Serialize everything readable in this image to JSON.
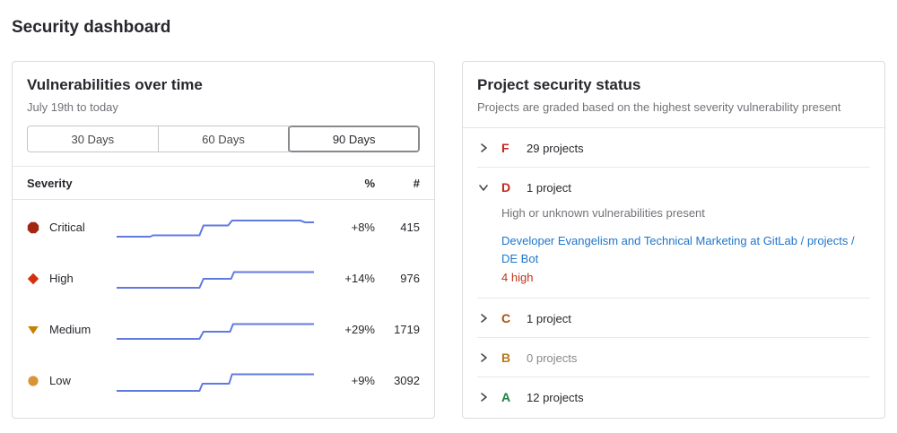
{
  "page": {
    "title": "Security dashboard"
  },
  "vulnerabilities_panel": {
    "title": "Vulnerabilities over time",
    "subtitle": "July 19th to today",
    "range_buttons": [
      {
        "label": "30 Days",
        "selected": false
      },
      {
        "label": "60 Days",
        "selected": false
      },
      {
        "label": "90 Days",
        "selected": true
      }
    ],
    "columns": {
      "severity": "Severity",
      "percent": "%",
      "count": "#"
    },
    "sparkline_color": "#617ae2",
    "rows": [
      {
        "severity": "Critical",
        "icon": "severity-critical",
        "icon_color": "#a12712",
        "percent_change": "+8%",
        "count": "415"
      },
      {
        "severity": "High",
        "icon": "severity-high",
        "icon_color": "#d2300f",
        "percent_change": "+14%",
        "count": "976"
      },
      {
        "severity": "Medium",
        "icon": "severity-medium",
        "icon_color": "#c78100",
        "percent_change": "+29%",
        "count": "1719"
      },
      {
        "severity": "Low",
        "icon": "severity-low",
        "icon_color": "#d99435",
        "percent_change": "+9%",
        "count": "3092"
      }
    ]
  },
  "project_status_panel": {
    "title": "Project security status",
    "subtitle": "Projects are graded based on the highest severity vulnerability present",
    "grades": [
      {
        "grade": "F",
        "color": "#c4261a",
        "count_label": "29 projects",
        "expanded": false
      },
      {
        "grade": "D",
        "color": "#c4261a",
        "count_label": "1 project",
        "expanded": true,
        "description": "High or unknown vulnerabilities present",
        "project": {
          "name": "Developer Evangelism and Technical Marketing at GitLab / projects / DE Bot",
          "vulnerability_summary": "4 high",
          "summary_color": "#c0341d"
        }
      },
      {
        "grade": "C",
        "color": "#ad4e0c",
        "count_label": "1 project",
        "expanded": false
      },
      {
        "grade": "B",
        "color": "#b5791a",
        "count_label": "0 projects",
        "expanded": false,
        "muted": true
      },
      {
        "grade": "A",
        "color": "#1f7d45",
        "count_label": "12 projects",
        "expanded": false
      }
    ]
  },
  "chart_data": [
    {
      "type": "line",
      "name": "Critical 90-day trend",
      "color": "#617ae2",
      "axes": "hidden sparkline",
      "points": [
        [
          0,
          27
        ],
        [
          34,
          27
        ],
        [
          37,
          25.5
        ],
        [
          84,
          25.5
        ],
        [
          88,
          14.5
        ],
        [
          113,
          14.5
        ],
        [
          117,
          9
        ],
        [
          186,
          9
        ],
        [
          191,
          11
        ],
        [
          200,
          11
        ]
      ]
    },
    {
      "type": "line",
      "name": "High 90-day trend",
      "color": "#617ae2",
      "axes": "hidden sparkline",
      "points": [
        [
          0,
          27
        ],
        [
          84,
          27
        ],
        [
          88,
          17
        ],
        [
          116,
          17
        ],
        [
          119,
          9.5
        ],
        [
          200,
          9.5
        ]
      ]
    },
    {
      "type": "line",
      "name": "Medium 90-day trend",
      "color": "#617ae2",
      "axes": "hidden sparkline",
      "points": [
        [
          0,
          27
        ],
        [
          84,
          27
        ],
        [
          88,
          19
        ],
        [
          115,
          19
        ],
        [
          118,
          10.5
        ],
        [
          200,
          10.5
        ]
      ]
    },
    {
      "type": "line",
      "name": "Low 90-day trend",
      "color": "#617ae2",
      "axes": "hidden sparkline",
      "points": [
        [
          0,
          28
        ],
        [
          84,
          28
        ],
        [
          87,
          20
        ],
        [
          114,
          20
        ],
        [
          117,
          9.5
        ],
        [
          200,
          9.5
        ]
      ]
    }
  ]
}
